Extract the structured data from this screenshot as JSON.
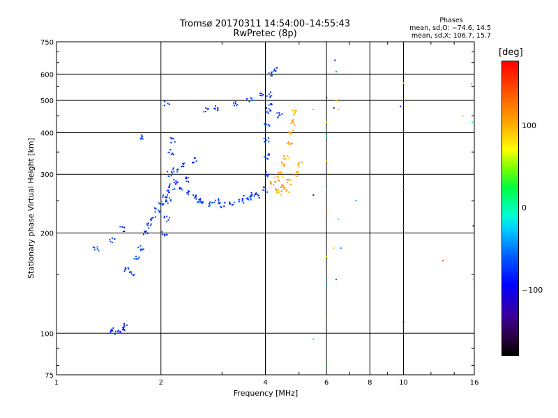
{
  "header": {
    "title_line1": "Tromsø 20170311 14:54:00–14:55:43",
    "title_line2": "RwPretec (8p)",
    "phases_title": "Phases",
    "phase_O": "mean, sd,O: −74.6, 14.5",
    "phase_X": "mean, sd,X: 106.7, 15.7"
  },
  "colorbar": {
    "unit": "[deg]",
    "ticks": [
      "100",
      "0",
      "−100"
    ],
    "tick_values": [
      100,
      0,
      -100
    ],
    "range": [
      -180,
      180
    ],
    "colormap": "rainbow (black→violet→blue→cyan→green→yellow→orange→red)"
  },
  "chart_data": {
    "type": "scatter",
    "title": "Tromsø 20170311 14:54:00–14:55:43",
    "subtitle": "RwPretec (8p)",
    "xlabel": "Frequency [MHz]",
    "ylabel": "Stationary phase Virtual Height [km]",
    "x_scale": "log",
    "y_scale": "log",
    "xlim": [
      1,
      16
    ],
    "ylim": [
      75,
      750
    ],
    "x_ticks": [
      1,
      2,
      4,
      6,
      8,
      10,
      16
    ],
    "x_tick_labels": [
      "1",
      "2",
      "4",
      "6",
      "8",
      "10",
      "16"
    ],
    "y_ticks": [
      75,
      100,
      200,
      300,
      400,
      500,
      600,
      750
    ],
    "y_tick_labels": [
      "75",
      "100",
      "200",
      "300",
      "400",
      "500",
      "600",
      "750"
    ],
    "grid": true,
    "colors": {
      "o_mode": "#1060e0",
      "x_mode": "#f0a000",
      "deep": "#2020c0",
      "scatter_red": "#e04000"
    },
    "series": [
      {
        "mode": "O",
        "phase": -75,
        "points": [
          [
            1.45,
            102
          ],
          [
            1.5,
            101
          ],
          [
            1.55,
            102
          ],
          [
            1.57,
            105
          ],
          [
            1.3,
            180
          ],
          [
            1.45,
            190
          ],
          [
            1.55,
            205
          ],
          [
            1.6,
            155
          ],
          [
            1.65,
            150
          ],
          [
            1.7,
            170
          ],
          [
            1.75,
            180
          ],
          [
            1.8,
            200
          ],
          [
            1.85,
            210
          ],
          [
            1.9,
            220
          ],
          [
            1.95,
            235
          ],
          [
            2.0,
            245
          ],
          [
            2.05,
            255
          ],
          [
            2.1,
            265
          ],
          [
            2.15,
            275
          ],
          [
            2.2,
            285
          ],
          [
            2.3,
            270
          ],
          [
            2.4,
            265
          ],
          [
            2.5,
            255
          ],
          [
            2.6,
            250
          ],
          [
            2.8,
            245
          ],
          [
            3.0,
            242
          ],
          [
            3.2,
            245
          ],
          [
            3.4,
            250
          ],
          [
            3.6,
            255
          ],
          [
            3.8,
            260
          ],
          [
            4.0,
            270
          ],
          [
            4.02,
            300
          ],
          [
            4.03,
            340
          ],
          [
            4.04,
            380
          ],
          [
            4.05,
            420
          ],
          [
            4.07,
            460
          ],
          [
            4.1,
            520
          ],
          [
            4.15,
            600
          ],
          [
            4.3,
            620
          ],
          [
            4.1,
            480
          ],
          [
            3.9,
            520
          ],
          [
            3.6,
            500
          ],
          [
            3.3,
            490
          ],
          [
            2.9,
            475
          ],
          [
            2.7,
            470
          ],
          [
            2.05,
            200
          ],
          [
            2.08,
            220
          ],
          [
            2.1,
            250
          ],
          [
            2.12,
            300
          ],
          [
            2.14,
            350
          ],
          [
            2.16,
            380
          ],
          [
            2.2,
            310
          ],
          [
            2.3,
            320
          ],
          [
            2.5,
            330
          ],
          [
            2.4,
            290
          ],
          [
            1.75,
            390
          ],
          [
            2.08,
            490
          ],
          [
            2.6,
            250
          ],
          [
            2.9,
            250
          ],
          [
            3.5,
            255
          ],
          [
            3.7,
            262
          ],
          [
            4.4,
            450
          ]
        ]
      },
      {
        "mode": "X",
        "phase": 107,
        "points": [
          [
            4.2,
            280
          ],
          [
            4.3,
            290
          ],
          [
            4.4,
            300
          ],
          [
            4.5,
            320
          ],
          [
            4.6,
            340
          ],
          [
            4.7,
            370
          ],
          [
            4.75,
            400
          ],
          [
            4.8,
            430
          ],
          [
            4.85,
            460
          ],
          [
            4.3,
            270
          ],
          [
            4.5,
            275
          ],
          [
            4.7,
            285
          ],
          [
            4.9,
            300
          ],
          [
            5.0,
            320
          ],
          [
            4.4,
            265
          ],
          [
            4.6,
            270
          ]
        ]
      },
      {
        "mode": "scatter",
        "phase": 0,
        "points": [
          [
            6.0,
            80
          ],
          [
            6.0,
            110
          ],
          [
            6.0,
            140
          ],
          [
            6.0,
            170
          ],
          [
            6.0,
            230
          ],
          [
            6.0,
            270
          ],
          [
            6.0,
            330
          ],
          [
            6.0,
            390
          ],
          [
            6.0,
            430
          ],
          [
            6.0,
            510
          ],
          [
            6.35,
            660
          ],
          [
            6.4,
            610
          ],
          [
            6.4,
            500
          ],
          [
            6.3,
            475
          ],
          [
            6.5,
            470
          ],
          [
            6.5,
            220
          ],
          [
            6.3,
            180
          ],
          [
            6.4,
            145
          ],
          [
            6.6,
            180
          ],
          [
            7.3,
            250
          ],
          [
            9.8,
            480
          ],
          [
            10.0,
            565
          ],
          [
            10.0,
            210
          ],
          [
            10.0,
            270
          ],
          [
            10.0,
            108
          ],
          [
            13.0,
            165
          ],
          [
            14.8,
            450
          ],
          [
            15.7,
            560
          ],
          [
            15.8,
            430
          ],
          [
            15.9,
            210
          ],
          [
            15.9,
            145
          ],
          [
            5.5,
            96
          ],
          [
            5.5,
            260
          ],
          [
            5.5,
            470
          ]
        ]
      }
    ]
  }
}
